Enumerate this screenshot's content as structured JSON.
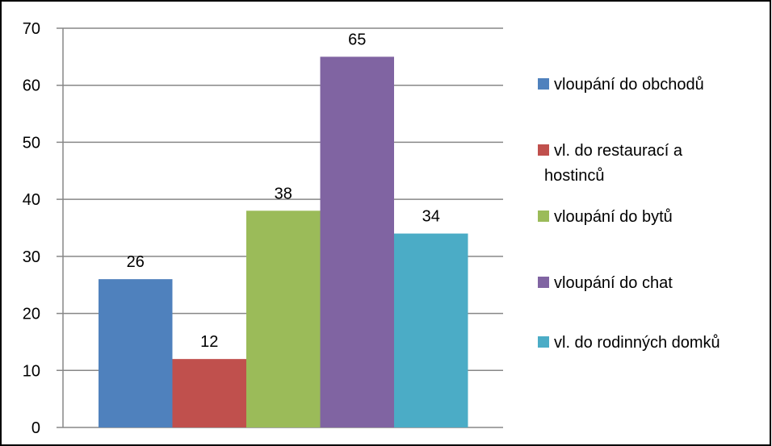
{
  "chart_data": {
    "type": "bar",
    "title": "",
    "xlabel": "",
    "ylabel": "",
    "ylim": [
      0,
      70
    ],
    "yticks": [
      0,
      10,
      20,
      30,
      40,
      50,
      60,
      70
    ],
    "grid": true,
    "legend_position": "right",
    "series": [
      {
        "name": "vloupání do obchodů",
        "value": 26,
        "color": "#4f81bd"
      },
      {
        "name": "vl. do restaurací a hostinců",
        "value": 12,
        "color": "#c0504d"
      },
      {
        "name": "vloupání do bytů",
        "value": 38,
        "color": "#9bbb59"
      },
      {
        "name": "vloupání do chat",
        "value": 65,
        "color": "#8064a2"
      },
      {
        "name": "vl. do rodinných domků",
        "value": 34,
        "color": "#4bacc6"
      }
    ]
  }
}
